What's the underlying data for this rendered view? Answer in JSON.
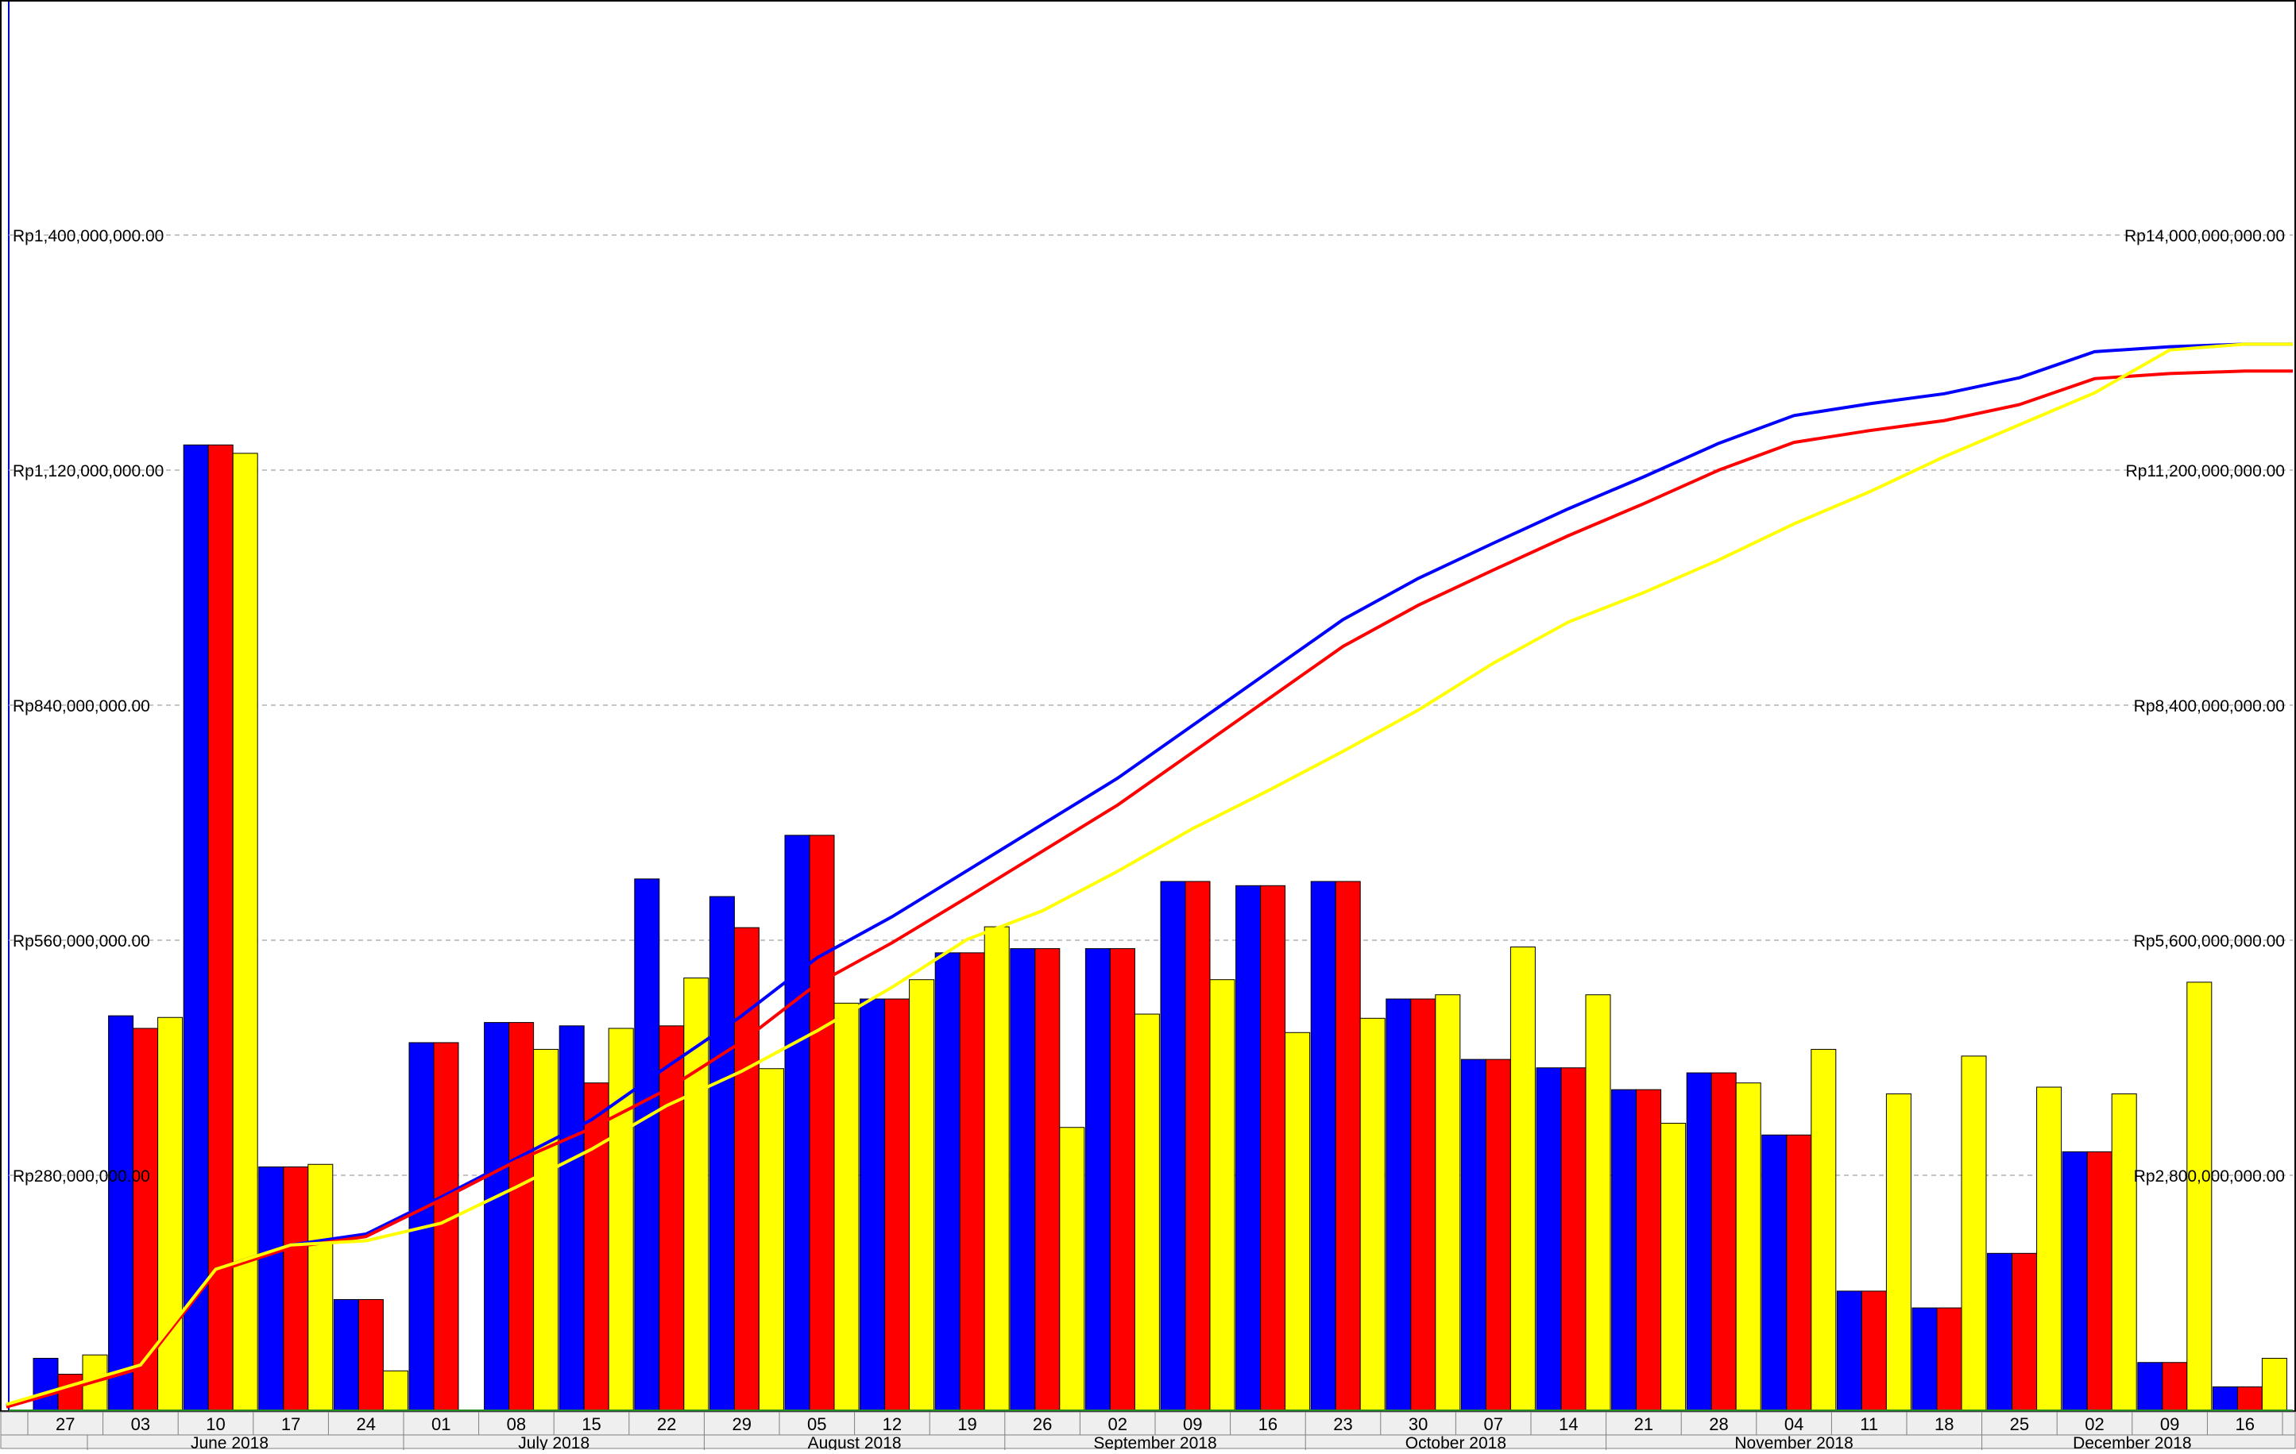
{
  "chart_data": {
    "type": "bar",
    "title": "",
    "xlabel": "",
    "ylabel": "",
    "ylim": [
      0,
      1680000000
    ],
    "y2lim": [
      0,
      16800000000
    ],
    "yticks": [
      "Rp280,000,000.00",
      "Rp560,000,000.00",
      "Rp840,000,000.00",
      "Rp1,120,000,000.00",
      "Rp1,400,000,000.00"
    ],
    "y2ticks": [
      "Rp2,800,000,000.00",
      "Rp5,600,000,000.00",
      "Rp8,400,000,000.00",
      "Rp11,200,000,000.00",
      "Rp14,000,000,000.00"
    ],
    "ytick_values": [
      280000000,
      560000000,
      840000000,
      1120000000,
      1400000000
    ],
    "grid": true,
    "categories": [
      "27",
      "03",
      "10",
      "17",
      "24",
      "01",
      "08",
      "15",
      "22",
      "29",
      "05",
      "12",
      "19",
      "26",
      "02",
      "09",
      "16",
      "23",
      "30",
      "07",
      "14",
      "21",
      "28",
      "04",
      "11",
      "18",
      "25",
      "02",
      "09",
      "16"
    ],
    "months": [
      {
        "label": "June 2018",
        "start": 1,
        "end": 4
      },
      {
        "label": "July 2018",
        "start": 5,
        "end": 8
      },
      {
        "label": "August 2018",
        "start": 9,
        "end": 12
      },
      {
        "label": "September 2018",
        "start": 13,
        "end": 16
      },
      {
        "label": "October 2018",
        "start": 17,
        "end": 20
      },
      {
        "label": "November 2018",
        "start": 21,
        "end": 25
      },
      {
        "label": "December 2018",
        "start": 26,
        "end": 29
      }
    ],
    "series": [
      {
        "color": "#0000ff",
        "type": "bar",
        "values": [
          62000000,
          470000000,
          1150000000,
          290000000,
          132000000,
          438000000,
          462000000,
          458000000,
          633000000,
          612000000,
          685000000,
          490000000,
          545000000,
          550000000,
          550000000,
          630000000,
          625000000,
          630000000,
          490000000,
          418000000,
          408000000,
          382000000,
          402000000,
          328000000,
          142000000,
          122000000,
          187000000,
          308000000,
          57000000,
          28000000
        ]
      },
      {
        "color": "#ff0000",
        "type": "bar",
        "values": [
          43000000,
          455000000,
          1150000000,
          290000000,
          132000000,
          438000000,
          462000000,
          390000000,
          458000000,
          575000000,
          685000000,
          490000000,
          545000000,
          550000000,
          550000000,
          630000000,
          625000000,
          630000000,
          490000000,
          418000000,
          408000000,
          382000000,
          402000000,
          328000000,
          142000000,
          122000000,
          187000000,
          308000000,
          57000000,
          28000000
        ]
      },
      {
        "color": "#ffff00",
        "type": "bar",
        "values": [
          66000000,
          468000000,
          1140000000,
          293000000,
          47000000,
          null,
          430000000,
          455000000,
          515000000,
          407000000,
          485000000,
          513000000,
          576000000,
          337000000,
          472000000,
          513000000,
          450000000,
          467000000,
          495000000,
          552000000,
          495000000,
          342000000,
          390000000,
          430000000,
          377000000,
          422000000,
          385000000,
          377000000,
          510000000,
          62000000
        ]
      },
      {
        "color": "#0000ff",
        "type": "line",
        "axis": "secondary",
        "values": [
          60000000,
          530000000,
          1680000000,
          1970000000,
          2100000000,
          2540000000,
          3000000000,
          3460000000,
          4090000000,
          4700000000,
          5390000000,
          5880000000,
          6430000000,
          6980000000,
          7530000000,
          8160000000,
          8790000000,
          9420000000,
          9910000000,
          10330000000,
          10740000000,
          11120000000,
          11520000000,
          11850000000,
          11990000000,
          12110000000,
          12300000000,
          12610000000,
          12670000000,
          12700000000
        ]
      },
      {
        "color": "#ff0000",
        "type": "line",
        "axis": "secondary",
        "values": [
          40000000,
          500000000,
          1650000000,
          1940000000,
          2070000000,
          2510000000,
          2970000000,
          3360000000,
          3820000000,
          4390000000,
          5080000000,
          5570000000,
          6110000000,
          6660000000,
          7210000000,
          7840000000,
          8470000000,
          9100000000,
          9590000000,
          10010000000,
          10420000000,
          10800000000,
          11200000000,
          11530000000,
          11670000000,
          11790000000,
          11980000000,
          12290000000,
          12350000000,
          12380000000
        ]
      },
      {
        "color": "#ffff00",
        "type": "line",
        "axis": "secondary",
        "values": [
          70000000,
          540000000,
          1680000000,
          1970000000,
          2020000000,
          2230000000,
          2660000000,
          3110000000,
          3630000000,
          4040000000,
          4520000000,
          5040000000,
          5610000000,
          5950000000,
          6420000000,
          6930000000,
          7380000000,
          7850000000,
          8340000000,
          8900000000,
          9390000000,
          9740000000,
          10130000000,
          10560000000,
          10940000000,
          11360000000,
          11740000000,
          12120000000,
          12630000000,
          12700000000
        ]
      }
    ]
  }
}
